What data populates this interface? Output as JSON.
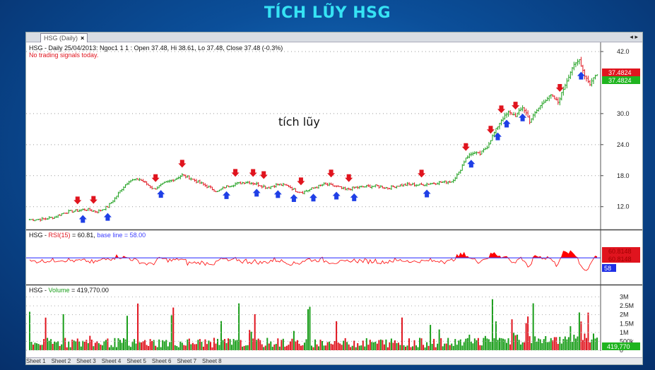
{
  "page_title": "TÍCH LŨY HSG",
  "window": {
    "tab_label": "HSG (Daily)",
    "tab_close": "×",
    "nav_prev": "◂",
    "nav_next": "▸"
  },
  "price_panel": {
    "header": "HSG - Daily 25/04/2013: Ngoc1 1 1 : Open 37.48, Hi 38.61, Lo 37.48, Close 37.48 (-0.3%)",
    "signal_note": "No trading signals today.",
    "annotation": "tích lũy",
    "last_price_label": "37.4824",
    "axis_ticks": [
      "42.0",
      "30.0",
      "24.0",
      "18.0",
      "12.0"
    ]
  },
  "rsi_panel": {
    "header_prefix": "HSG - ",
    "header_indicator": "RSI(15)",
    "header_value": " = 60.81, ",
    "header_baseline": "base line = 58.00",
    "value_label": "60.8148",
    "baseline_label": "58"
  },
  "volume_panel": {
    "header_prefix": "HSG - ",
    "header_indicator": "Volume",
    "header_value": " = 419,770.00",
    "axis_ticks": [
      "3M",
      "2.5M",
      "2M",
      "1.5M",
      "1M",
      "500k",
      "0"
    ],
    "last_value_label": "419,770"
  },
  "sheet_tabs": [
    "Sheet 1",
    "Sheet 2",
    "Sheet 3",
    "Sheet 4",
    "Sheet 5",
    "Sheet 6",
    "Sheet 7",
    "Sheet 8"
  ],
  "colors": {
    "up": "#1a9e1a",
    "down": "#e0141e",
    "rsi_fill": "#ff0000",
    "baseline": "#3d3dff",
    "buy_arrow": "#1f3fe6",
    "sell_arrow": "#e0141e"
  },
  "chart_data": {
    "type": "line",
    "price": {
      "ylim": [
        8,
        43.5
      ],
      "close_waypoints": [
        [
          0,
          9.5
        ],
        [
          8,
          9.6
        ],
        [
          14,
          10.0
        ],
        [
          20,
          10.9
        ],
        [
          26,
          11.2
        ],
        [
          32,
          11.5
        ],
        [
          38,
          11.0
        ],
        [
          44,
          12.0
        ],
        [
          48,
          13.6
        ],
        [
          52,
          15.5
        ],
        [
          56,
          17.0
        ],
        [
          62,
          17.3
        ],
        [
          66,
          16.4
        ],
        [
          70,
          15.4
        ],
        [
          76,
          16.5
        ],
        [
          82,
          17.4
        ],
        [
          86,
          18.1
        ],
        [
          90,
          17.6
        ],
        [
          96,
          16.6
        ],
        [
          102,
          15.6
        ],
        [
          106,
          14.9
        ],
        [
          110,
          15.8
        ],
        [
          116,
          16.4
        ],
        [
          122,
          16.8
        ],
        [
          128,
          16.4
        ],
        [
          134,
          15.7
        ],
        [
          140,
          16.3
        ],
        [
          146,
          16.0
        ],
        [
          150,
          15.1
        ],
        [
          154,
          14.8
        ],
        [
          160,
          15.6
        ],
        [
          166,
          16.3
        ],
        [
          172,
          16.0
        ],
        [
          178,
          15.3
        ],
        [
          184,
          15.7
        ],
        [
          190,
          15.9
        ],
        [
          196,
          16.0
        ],
        [
          202,
          15.6
        ],
        [
          208,
          16.1
        ],
        [
          214,
          16.3
        ],
        [
          220,
          16.2
        ],
        [
          226,
          16.5
        ],
        [
          232,
          16.7
        ],
        [
          238,
          16.9
        ],
        [
          242,
          18.5
        ],
        [
          246,
          21.5
        ],
        [
          250,
          22.4
        ],
        [
          254,
          22.2
        ],
        [
          258,
          23.6
        ],
        [
          262,
          26.3
        ],
        [
          266,
          28.8
        ],
        [
          270,
          30.2
        ],
        [
          274,
          29.6
        ],
        [
          278,
          31.2
        ],
        [
          280,
          30.1
        ],
        [
          282,
          28.5
        ],
        [
          286,
          30.6
        ],
        [
          290,
          32.4
        ],
        [
          294,
          33.5
        ],
        [
          298,
          32.2
        ],
        [
          302,
          35.6
        ],
        [
          306,
          38.9
        ],
        [
          310,
          40.4
        ],
        [
          313,
          37.4
        ],
        [
          316,
          35.7
        ],
        [
          319,
          37.5
        ],
        [
          320,
          37.48
        ]
      ],
      "sell_signal_bars": [
        27,
        36,
        71,
        86,
        116,
        126,
        132,
        153,
        170,
        180,
        221,
        246,
        260,
        266,
        274,
        299
      ],
      "buy_signal_bars": [
        30,
        44,
        74,
        111,
        128,
        140,
        149,
        160,
        173,
        183,
        224,
        249,
        264,
        269,
        278,
        311
      ]
    },
    "rsi": {
      "ylim": [
        0,
        100
      ],
      "baseline": 58.0,
      "last_value": 60.81
    },
    "volume": {
      "ylim": [
        0,
        3.1
      ],
      "unit": "M",
      "last_value": 0.41977
    },
    "bars": 321
  }
}
